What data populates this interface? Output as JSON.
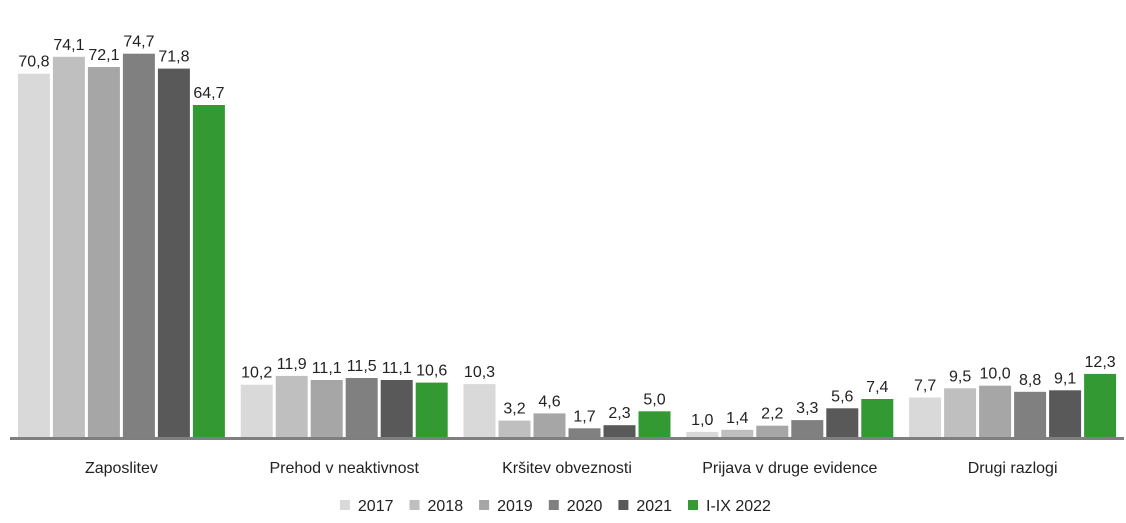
{
  "chart_data": {
    "type": "bar",
    "categories": [
      "Zaposlitev",
      "Prehod v neaktivnost",
      "Kršitev obveznosti",
      "Prijava v druge evidence",
      "Drugi razlogi"
    ],
    "series": [
      {
        "name": "2017",
        "color": "#d9d9d9",
        "values": [
          70.8,
          10.2,
          10.3,
          1.0,
          7.7
        ],
        "labels": [
          "70,8",
          "10,2",
          "10,3",
          "1,0",
          "7,7"
        ]
      },
      {
        "name": "2018",
        "color": "#bfbfbf",
        "values": [
          74.1,
          11.9,
          3.2,
          1.4,
          9.5
        ],
        "labels": [
          "74,1",
          "11,9",
          "3,2",
          "1,4",
          "9,5"
        ]
      },
      {
        "name": "2019",
        "color": "#a6a6a6",
        "values": [
          72.1,
          11.1,
          4.6,
          2.2,
          10.0
        ],
        "labels": [
          "72,1",
          "11,1",
          "4,6",
          "2,2",
          "10,0"
        ]
      },
      {
        "name": "2020",
        "color": "#808080",
        "values": [
          74.7,
          11.5,
          1.7,
          3.3,
          8.8
        ],
        "labels": [
          "74,7",
          "11,5",
          "1,7",
          "3,3",
          "8,8"
        ]
      },
      {
        "name": "2021",
        "color": "#595959",
        "values": [
          71.8,
          11.1,
          2.3,
          5.6,
          9.1
        ],
        "labels": [
          "71,8",
          "11,1",
          "2,3",
          "5,6",
          "9,1"
        ]
      },
      {
        "name": "I-IX 2022",
        "color": "#339933",
        "values": [
          64.7,
          10.6,
          5.0,
          7.4,
          12.3
        ],
        "labels": [
          "64,7",
          "10,6",
          "5,0",
          "7,4",
          "12,3"
        ]
      }
    ],
    "ylim": [
      0,
      76
    ],
    "grid": false,
    "legend_position": "bottom",
    "axis_color": "#7f7f7f"
  }
}
